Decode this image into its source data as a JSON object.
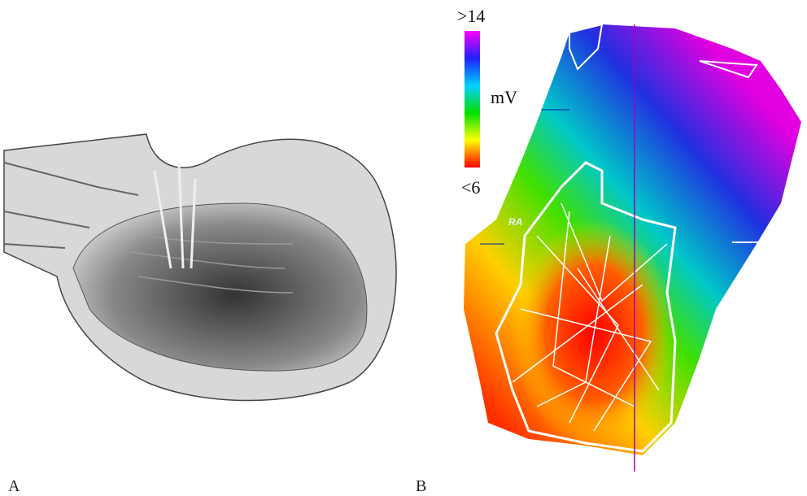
{
  "panels": [
    {
      "label": "A"
    },
    {
      "label": "B",
      "colorbar": {
        "max_label": ">14",
        "unit": "mV",
        "min_label": "<6"
      },
      "annotation": "RA"
    }
  ]
}
